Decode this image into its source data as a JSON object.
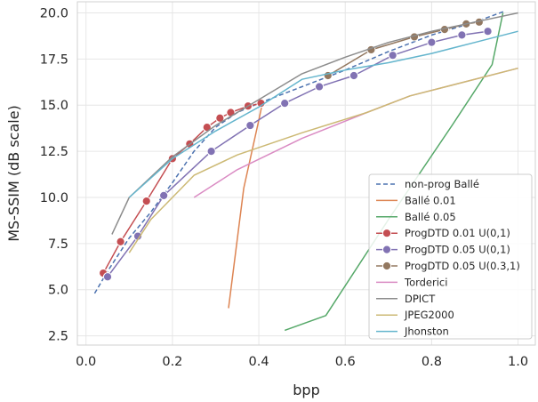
{
  "chart_data": {
    "type": "line",
    "title": "",
    "xlabel": "bpp",
    "ylabel": "MS-SSIM (dB scale)",
    "xlim": [
      -0.02,
      1.04
    ],
    "ylim": [
      2.0,
      20.6
    ],
    "xticks": [
      0.0,
      0.2,
      0.4,
      0.6,
      0.8,
      1.0
    ],
    "xtick_labels": [
      "0.0",
      "0.2",
      "0.4",
      "0.6",
      "0.8",
      "1.0"
    ],
    "yticks": [
      2.5,
      5.0,
      7.5,
      10.0,
      12.5,
      15.0,
      17.5,
      20.0
    ],
    "ytick_labels": [
      "2.5",
      "5.0",
      "7.5",
      "10.0",
      "12.5",
      "15.0",
      "17.5",
      "20.0"
    ],
    "grid": true,
    "legend_position": "bottom-right",
    "series": [
      {
        "name": "non-prog Ballé",
        "color": "#4c72b0",
        "dash": "dashed",
        "marker": false,
        "x": [
          0.02,
          0.05,
          0.1,
          0.15,
          0.2,
          0.25,
          0.3,
          0.35,
          0.4,
          0.5,
          0.6,
          0.7,
          0.8,
          0.9,
          0.97
        ],
        "y": [
          4.8,
          6.0,
          7.8,
          9.2,
          10.8,
          12.5,
          13.8,
          14.6,
          15.1,
          16.0,
          16.9,
          17.9,
          18.8,
          19.5,
          20.1
        ]
      },
      {
        "name": "Ballé 0.01",
        "color": "#dd8452",
        "dash": "solid",
        "marker": false,
        "x": [
          0.33,
          0.365,
          0.4,
          0.41
        ],
        "y": [
          4.0,
          10.5,
          14.2,
          15.3
        ]
      },
      {
        "name": "Ballé 0.05",
        "color": "#55a868",
        "dash": "solid",
        "marker": false,
        "x": [
          0.46,
          0.555,
          0.7,
          0.85,
          0.94,
          0.965
        ],
        "y": [
          2.8,
          3.6,
          8.8,
          14.0,
          17.2,
          20.0
        ]
      },
      {
        "name": "ProgDTD 0.01 U(0,1)",
        "color": "#c44e52",
        "dash": "solid",
        "marker": true,
        "x": [
          0.04,
          0.08,
          0.14,
          0.2,
          0.24,
          0.28,
          0.31,
          0.335,
          0.375,
          0.405
        ],
        "y": [
          5.9,
          7.6,
          9.8,
          12.1,
          12.9,
          13.8,
          14.3,
          14.6,
          14.95,
          15.1
        ]
      },
      {
        "name": "ProgDTD 0.05 U(0,1)",
        "color": "#8172b3",
        "dash": "solid",
        "marker": true,
        "x": [
          0.05,
          0.12,
          0.18,
          0.29,
          0.38,
          0.46,
          0.54,
          0.62,
          0.71,
          0.8,
          0.87,
          0.93
        ],
        "y": [
          5.7,
          7.9,
          10.1,
          12.5,
          13.9,
          15.1,
          16.0,
          16.6,
          17.7,
          18.4,
          18.8,
          19.0
        ]
      },
      {
        "name": "ProgDTD 0.05 U(0.3,1)",
        "color": "#937860",
        "dash": "solid",
        "marker": true,
        "x": [
          0.56,
          0.66,
          0.76,
          0.83,
          0.88,
          0.91
        ],
        "y": [
          16.6,
          18.0,
          18.7,
          19.1,
          19.4,
          19.5
        ]
      },
      {
        "name": "Torderici",
        "color": "#da8bc3",
        "dash": "solid",
        "marker": false,
        "x": [
          0.25,
          0.35,
          0.5,
          0.65,
          0.75,
          0.85,
          1.0
        ],
        "y": [
          10.0,
          11.5,
          13.2,
          14.6,
          15.5,
          16.1,
          17.0
        ]
      },
      {
        "name": "DPICT",
        "color": "#8c8c8c",
        "dash": "solid",
        "marker": false,
        "x": [
          0.06,
          0.1,
          0.2,
          0.3,
          0.4,
          0.5,
          0.6,
          0.7,
          0.8,
          0.9,
          1.0
        ],
        "y": [
          8.0,
          10.0,
          12.2,
          13.9,
          15.3,
          16.7,
          17.6,
          18.4,
          19.0,
          19.5,
          20.0
        ]
      },
      {
        "name": "JPEG2000",
        "color": "#ccb974",
        "dash": "solid",
        "marker": false,
        "x": [
          0.1,
          0.15,
          0.25,
          0.35,
          0.5,
          0.65,
          0.75,
          0.85,
          1.0
        ],
        "y": [
          7.0,
          8.8,
          11.2,
          12.3,
          13.5,
          14.6,
          15.5,
          16.1,
          17.0
        ]
      },
      {
        "name": "Jhonston",
        "color": "#64b5cd",
        "dash": "solid",
        "marker": false,
        "x": [
          0.1,
          0.2,
          0.3,
          0.4,
          0.5,
          0.6,
          0.7,
          0.8,
          0.9,
          1.0
        ],
        "y": [
          10.0,
          12.1,
          13.6,
          14.9,
          16.4,
          16.9,
          17.3,
          17.8,
          18.4,
          19.0
        ]
      }
    ]
  }
}
